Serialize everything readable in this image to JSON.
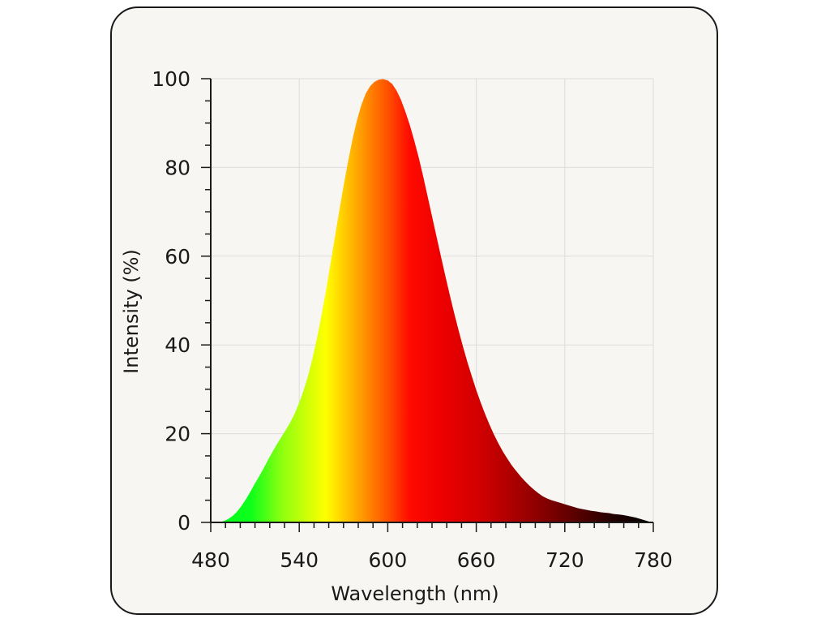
{
  "chart_data": {
    "type": "area",
    "title": "",
    "xlabel": "Wavelength (nm)",
    "ylabel": "Intensity (%)",
    "xlim": [
      480,
      780
    ],
    "ylim": [
      0,
      100
    ],
    "xticks": [
      480,
      540,
      600,
      660,
      720,
      780
    ],
    "yticks": [
      0,
      20,
      40,
      60,
      80,
      100
    ],
    "grid": true,
    "fill": "spectral gradient (green to yellow to orange to red to black)",
    "series": [
      {
        "x": [
          480,
          483,
          486,
          489,
          492,
          495,
          498,
          501,
          504,
          507,
          510,
          513,
          516,
          519,
          522,
          525,
          528,
          531,
          534,
          537,
          540,
          543,
          546,
          549,
          552,
          555,
          558,
          561,
          564,
          567,
          570,
          573,
          576,
          579,
          582,
          585,
          588,
          591,
          594,
          597,
          600,
          603,
          606,
          609,
          612,
          615,
          618,
          621,
          624,
          627,
          630,
          633,
          636,
          639,
          642,
          645,
          648,
          651,
          654,
          657,
          660,
          663,
          666,
          669,
          672,
          675,
          678,
          681,
          684,
          687,
          690,
          693,
          696,
          699,
          702,
          705,
          708,
          711,
          714,
          717,
          720,
          723,
          726,
          729,
          732,
          735,
          738,
          741,
          744,
          747,
          750,
          753,
          756,
          759,
          762,
          765,
          768,
          771,
          774,
          777
        ],
        "values": [
          0,
          0,
          0.1,
          0.3,
          0.8,
          1.5,
          2.5,
          3.8,
          5.3,
          7.0,
          8.8,
          10.5,
          12.3,
          14.2,
          16.0,
          17.7,
          19.3,
          20.9,
          22.6,
          24.6,
          27.0,
          29.8,
          33.1,
          37.0,
          41.5,
          46.5,
          52.0,
          58.0,
          64.0,
          70.0,
          75.8,
          81.2,
          86.2,
          90.5,
          94.0,
          96.6,
          98.3,
          99.3,
          99.8,
          99.9,
          99.6,
          98.8,
          97.3,
          95.2,
          92.5,
          89.5,
          86.0,
          82.2,
          78.0,
          73.5,
          69.0,
          64.5,
          60.0,
          55.6,
          51.3,
          47.2,
          43.3,
          39.6,
          36.1,
          32.9,
          29.8,
          27.0,
          24.4,
          22.0,
          19.8,
          17.8,
          16.0,
          14.4,
          12.9,
          11.6,
          10.4,
          9.3,
          8.3,
          7.4,
          6.6,
          5.9,
          5.4,
          5.0,
          4.7,
          4.4,
          4.1,
          3.8,
          3.5,
          3.2,
          3.0,
          2.8,
          2.6,
          2.5,
          2.3,
          2.2,
          2.1,
          1.9,
          1.8,
          1.7,
          1.5,
          1.3,
          1.1,
          0.8,
          0.5,
          0.2
        ]
      }
    ]
  },
  "colors": {
    "axis": "#1a1a1a",
    "grid": "#dddddd",
    "card_background": "#f7f6f3"
  }
}
